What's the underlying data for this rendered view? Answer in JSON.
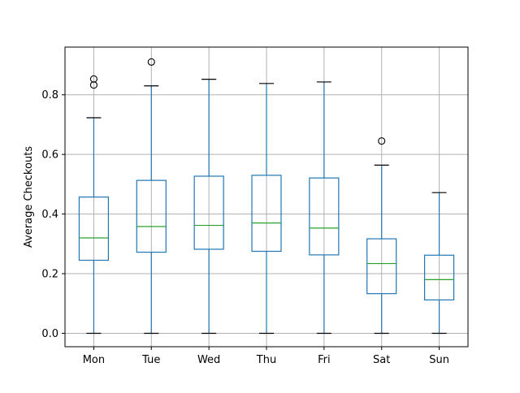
{
  "chart_data": {
    "type": "boxplot",
    "title": "",
    "xlabel": "",
    "ylabel": "Average Checkouts",
    "ylim": [
      -0.045,
      0.96
    ],
    "yticks": [
      0.0,
      0.2,
      0.4,
      0.6,
      0.8
    ],
    "ytick_labels": [
      "0.0",
      "0.2",
      "0.4",
      "0.6",
      "0.8"
    ],
    "grid": true,
    "categories": [
      "Mon",
      "Tue",
      "Wed",
      "Thu",
      "Fri",
      "Sat",
      "Sun"
    ],
    "boxes": [
      {
        "category": "Mon",
        "whisker_low": 0.0,
        "q1": 0.245,
        "median": 0.32,
        "q3": 0.457,
        "whisker_high": 0.723,
        "outliers": [
          0.833,
          0.853
        ]
      },
      {
        "category": "Tue",
        "whisker_low": 0.0,
        "q1": 0.272,
        "median": 0.358,
        "q3": 0.513,
        "whisker_high": 0.83,
        "outliers": [
          0.91
        ]
      },
      {
        "category": "Wed",
        "whisker_low": 0.0,
        "q1": 0.282,
        "median": 0.362,
        "q3": 0.527,
        "whisker_high": 0.852,
        "outliers": []
      },
      {
        "category": "Thu",
        "whisker_low": 0.0,
        "q1": 0.275,
        "median": 0.37,
        "q3": 0.53,
        "whisker_high": 0.838,
        "outliers": []
      },
      {
        "category": "Fri",
        "whisker_low": 0.0,
        "q1": 0.263,
        "median": 0.353,
        "q3": 0.521,
        "whisker_high": 0.843,
        "outliers": []
      },
      {
        "category": "Sat",
        "whisker_low": 0.0,
        "q1": 0.133,
        "median": 0.234,
        "q3": 0.317,
        "whisker_high": 0.564,
        "outliers": [
          0.645
        ]
      },
      {
        "category": "Sun",
        "whisker_low": 0.0,
        "q1": 0.112,
        "median": 0.18,
        "q3": 0.262,
        "whisker_high": 0.472,
        "outliers": []
      }
    ],
    "colors": {
      "box": "#1f77b4",
      "median": "#2ca02c",
      "cap": "#000000",
      "grid": "#b0b0b0",
      "axis": "#000000"
    }
  }
}
